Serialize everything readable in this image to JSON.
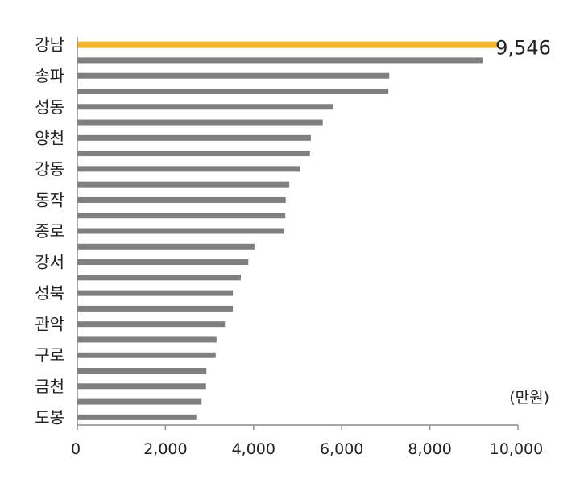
{
  "chart_data": {
    "type": "bar",
    "orientation": "horizontal",
    "unit": "(만원)",
    "xlim": [
      0,
      10000
    ],
    "x_ticks": [
      0,
      2000,
      4000,
      6000,
      8000,
      10000
    ],
    "x_tick_labels": [
      "0",
      "2,000",
      "4,000",
      "6,000",
      "8,000",
      "10,000"
    ],
    "category_labels": [
      "강남",
      "송파",
      "성동",
      "양천",
      "강동",
      "동작",
      "종로",
      "강서",
      "성북",
      "관악",
      "구로",
      "금천",
      "도봉"
    ],
    "values": [
      9546,
      9200,
      7080,
      7060,
      5800,
      5570,
      5300,
      5280,
      5060,
      4810,
      4730,
      4720,
      4700,
      4020,
      3880,
      3710,
      3530,
      3530,
      3350,
      3160,
      3140,
      2930,
      2920,
      2820,
      2700
    ],
    "highlight_index": 0,
    "value_labels": [
      "9,546"
    ],
    "colors": {
      "highlight": "#F2B429",
      "bar": "#7F7F7F",
      "axis": "#8C8C8C"
    },
    "grid": false
  }
}
